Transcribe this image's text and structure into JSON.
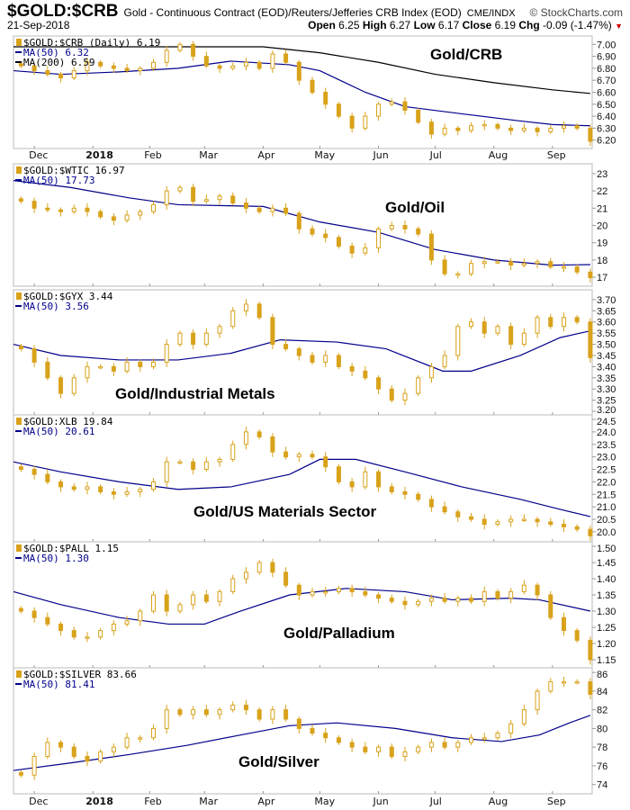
{
  "header": {
    "symbol": "$GOLD:$CRB",
    "description": "Gold - Continuous Contract (EOD)/Reuters/Jefferies CRB Index (EOD)",
    "exchange": "CME/INDX",
    "date": "21-Sep-2018",
    "brand": "© StockCharts.com",
    "open_label": "Open",
    "open": "6.25",
    "high_label": "High",
    "high": "6.27",
    "low_label": "Low",
    "low": "6.17",
    "close_label": "Close",
    "close": "6.19",
    "chg_label": "Chg",
    "chg": "-0.09 (-1.47%)",
    "chg_direction": "down"
  },
  "colors": {
    "candle": "#d9a21b",
    "ma50": "#00008b",
    "ma200": "#000000",
    "grid": "#bbbbbb"
  },
  "x_axis": {
    "labels": [
      "Dec",
      "2018",
      "Feb",
      "Mar",
      "Apr",
      "May",
      "Jun",
      "Jul",
      "Aug",
      "Sep"
    ],
    "label_dates": [
      "2017-12-01",
      "2018-01-01",
      "2018-01-31",
      "2018-03-01",
      "2018-04-01",
      "2018-05-01",
      "2018-06-01",
      "2018-07-01",
      "2018-08-01",
      "2018-09-01"
    ],
    "range": [
      "2017-11-20",
      "2018-09-22"
    ]
  },
  "chart_data": [
    {
      "type": "candlestick",
      "title": "Gold/CRB",
      "legend": [
        "$GOLD:$CRB (Daily) 6.19",
        "MA(50) 6.32",
        "MA(200) 6.59"
      ],
      "ylim": [
        6.13,
        7.07
      ],
      "yticks": [
        "7.00",
        "6.90",
        "6.80",
        "6.70",
        "6.60",
        "6.50",
        "6.40",
        "6.30",
        "6.20"
      ],
      "dates": [
        "2017-11-24",
        "2017-12-01",
        "2017-12-08",
        "2017-12-15",
        "2017-12-22",
        "2017-12-29",
        "2018-01-05",
        "2018-01-12",
        "2018-01-19",
        "2018-01-26",
        "2018-02-02",
        "2018-02-09",
        "2018-02-16",
        "2018-02-23",
        "2018-03-02",
        "2018-03-09",
        "2018-03-16",
        "2018-03-23",
        "2018-03-30",
        "2018-04-06",
        "2018-04-13",
        "2018-04-20",
        "2018-04-27",
        "2018-05-04",
        "2018-05-11",
        "2018-05-18",
        "2018-05-25",
        "2018-06-01",
        "2018-06-08",
        "2018-06-15",
        "2018-06-22",
        "2018-06-29",
        "2018-07-06",
        "2018-07-13",
        "2018-07-20",
        "2018-07-27",
        "2018-08-03",
        "2018-08-10",
        "2018-08-17",
        "2018-08-24",
        "2018-08-31",
        "2018-09-07",
        "2018-09-14",
        "2018-09-21"
      ],
      "close": [
        6.82,
        6.78,
        6.75,
        6.72,
        6.78,
        6.85,
        6.82,
        6.8,
        6.78,
        6.8,
        6.85,
        6.95,
        7.0,
        6.9,
        6.82,
        6.8,
        6.82,
        6.85,
        6.8,
        6.92,
        6.85,
        6.7,
        6.6,
        6.5,
        6.4,
        6.3,
        6.4,
        6.5,
        6.52,
        6.45,
        6.35,
        6.25,
        6.3,
        6.28,
        6.32,
        6.33,
        6.3,
        6.28,
        6.3,
        6.27,
        6.3,
        6.32,
        6.3,
        6.19
      ],
      "ma": [
        {
          "name": "MA(50)",
          "dates": [
            "2017-11-20",
            "2017-12-15",
            "2018-01-15",
            "2018-02-15",
            "2018-03-15",
            "2018-04-15",
            "2018-05-01",
            "2018-05-25",
            "2018-06-15",
            "2018-07-15",
            "2018-08-15",
            "2018-09-01",
            "2018-09-21"
          ],
          "values": [
            6.78,
            6.75,
            6.77,
            6.8,
            6.86,
            6.83,
            6.78,
            6.6,
            6.48,
            6.42,
            6.36,
            6.33,
            6.32
          ]
        },
        {
          "name": "MA(200)",
          "dates": [
            "2017-11-20",
            "2018-04-01",
            "2018-05-01",
            "2018-06-01",
            "2018-07-01",
            "2018-08-01",
            "2018-09-01",
            "2018-09-21"
          ],
          "values": [
            6.98,
            6.98,
            6.93,
            6.85,
            6.75,
            6.68,
            6.62,
            6.59
          ]
        }
      ]
    },
    {
      "type": "candlestick",
      "title": "Gold/Oil",
      "legend": [
        "$GOLD:$WTIC 16.97",
        "MA(50) 17.73"
      ],
      "ylim": [
        16.48,
        23.57
      ],
      "yticks": [
        "23",
        "22",
        "21",
        "20",
        "19",
        "18",
        "17"
      ],
      "close": [
        21.4,
        21.0,
        20.9,
        20.8,
        21.0,
        20.8,
        20.5,
        20.3,
        20.6,
        20.8,
        21.2,
        22.0,
        22.2,
        21.4,
        21.5,
        21.7,
        21.3,
        21.0,
        20.8,
        21.0,
        20.7,
        19.8,
        19.5,
        19.3,
        18.8,
        18.4,
        18.7,
        19.8,
        20.0,
        19.8,
        19.5,
        18.0,
        17.2,
        17.2,
        17.8,
        17.9,
        17.9,
        17.7,
        17.8,
        17.9,
        17.6,
        17.6,
        17.3,
        16.97
      ],
      "ma": [
        {
          "name": "MA(50)",
          "dates": [
            "2017-11-20",
            "2017-12-20",
            "2018-01-20",
            "2018-02-15",
            "2018-04-01",
            "2018-05-01",
            "2018-06-01",
            "2018-07-01",
            "2018-08-01",
            "2018-09-01",
            "2018-09-21"
          ],
          "values": [
            22.6,
            22.2,
            21.6,
            21.2,
            21.1,
            20.2,
            19.6,
            18.6,
            18.0,
            17.7,
            17.73
          ]
        }
      ]
    },
    {
      "type": "candlestick",
      "title": "Gold/Industrial Metals",
      "legend": [
        "$GOLD:$GYX 3.44",
        "MA(50) 3.56"
      ],
      "ylim": [
        3.184,
        3.744
      ],
      "yticks": [
        "3.70",
        "3.65",
        "3.60",
        "3.55",
        "3.50",
        "3.45",
        "3.40",
        "3.35",
        "3.30",
        "3.25",
        "3.20"
      ],
      "close": [
        3.48,
        3.42,
        3.35,
        3.28,
        3.35,
        3.4,
        3.4,
        3.38,
        3.42,
        3.4,
        3.42,
        3.5,
        3.55,
        3.5,
        3.55,
        3.58,
        3.65,
        3.68,
        3.62,
        3.5,
        3.48,
        3.45,
        3.42,
        3.45,
        3.4,
        3.38,
        3.35,
        3.3,
        3.25,
        3.28,
        3.35,
        3.4,
        3.45,
        3.58,
        3.6,
        3.55,
        3.58,
        3.5,
        3.55,
        3.62,
        3.58,
        3.62,
        3.6,
        3.44
      ],
      "ma": [
        {
          "name": "MA(50)",
          "dates": [
            "2017-11-20",
            "2017-12-15",
            "2018-01-15",
            "2018-02-15",
            "2018-03-15",
            "2018-04-10",
            "2018-05-10",
            "2018-06-05",
            "2018-07-05",
            "2018-07-20",
            "2018-08-15",
            "2018-09-05",
            "2018-09-21"
          ],
          "values": [
            3.5,
            3.45,
            3.43,
            3.43,
            3.46,
            3.52,
            3.51,
            3.48,
            3.38,
            3.38,
            3.45,
            3.53,
            3.56
          ]
        }
      ]
    },
    {
      "type": "candlestick",
      "title": "Gold/US Materials Sector",
      "legend": [
        "$GOLD:XLB 19.84",
        "MA(50) 20.61"
      ],
      "ylim": [
        19.6,
        24.68
      ],
      "yticks": [
        "24.5",
        "24.0",
        "23.5",
        "23.0",
        "22.5",
        "22.0",
        "21.5",
        "21.0",
        "20.5",
        "20.0"
      ],
      "close": [
        22.5,
        22.3,
        22.0,
        21.8,
        21.7,
        21.8,
        21.6,
        21.5,
        21.6,
        21.7,
        22.0,
        22.8,
        22.8,
        22.5,
        22.8,
        22.9,
        23.5,
        24.0,
        23.8,
        23.2,
        23.0,
        23.1,
        23.0,
        22.6,
        22.0,
        21.8,
        22.4,
        21.8,
        21.6,
        21.5,
        21.3,
        21.0,
        20.8,
        20.6,
        20.5,
        20.3,
        20.4,
        20.5,
        20.5,
        20.4,
        20.3,
        20.2,
        20.1,
        19.84
      ],
      "ma": [
        {
          "name": "MA(50)",
          "dates": [
            "2017-11-20",
            "2017-12-15",
            "2018-01-15",
            "2018-02-15",
            "2018-03-15",
            "2018-04-15",
            "2018-05-01",
            "2018-05-20",
            "2018-06-15",
            "2018-07-15",
            "2018-08-15",
            "2018-09-05",
            "2018-09-21"
          ],
          "values": [
            22.8,
            22.4,
            22.0,
            21.7,
            21.8,
            22.3,
            22.9,
            22.9,
            22.4,
            21.8,
            21.3,
            20.9,
            20.61
          ]
        }
      ]
    },
    {
      "type": "candlestick",
      "title": "Gold/Palladium",
      "legend": [
        "$GOLD:$PALL 1.15",
        "MA(50) 1.30"
      ],
      "ylim": [
        1.125,
        1.514
      ],
      "yticks": [
        "1.50",
        "1.45",
        "1.40",
        "1.35",
        "1.30",
        "1.25",
        "1.20",
        "1.15"
      ],
      "close": [
        1.3,
        1.28,
        1.26,
        1.24,
        1.22,
        1.22,
        1.24,
        1.26,
        1.27,
        1.3,
        1.35,
        1.3,
        1.32,
        1.35,
        1.33,
        1.36,
        1.4,
        1.42,
        1.45,
        1.42,
        1.38,
        1.35,
        1.36,
        1.36,
        1.37,
        1.36,
        1.35,
        1.34,
        1.33,
        1.32,
        1.33,
        1.34,
        1.33,
        1.34,
        1.33,
        1.36,
        1.34,
        1.36,
        1.38,
        1.35,
        1.28,
        1.24,
        1.21,
        1.15
      ],
      "ma": [
        {
          "name": "MA(50)",
          "dates": [
            "2017-11-20",
            "2017-12-15",
            "2018-01-15",
            "2018-02-10",
            "2018-03-01",
            "2018-03-20",
            "2018-04-15",
            "2018-05-15",
            "2018-06-15",
            "2018-07-10",
            "2018-08-10",
            "2018-08-25",
            "2018-09-21"
          ],
          "values": [
            1.36,
            1.32,
            1.28,
            1.26,
            1.26,
            1.3,
            1.35,
            1.37,
            1.36,
            1.335,
            1.34,
            1.335,
            1.3
          ]
        }
      ]
    },
    {
      "type": "candlestick",
      "title": "Gold/Silver",
      "legend": [
        "$GOLD:$SILVER 83.66",
        "MA(50) 81.41"
      ],
      "ylim": [
        73.0,
        86.5
      ],
      "yticks": [
        "86",
        "84",
        "82",
        "80",
        "78",
        "76",
        "74"
      ],
      "close": [
        75.0,
        77.0,
        78.5,
        78.0,
        77.0,
        76.5,
        77.5,
        78.0,
        79.0,
        79.0,
        80.0,
        82.0,
        81.5,
        82.0,
        81.5,
        82.0,
        82.5,
        82.0,
        81.0,
        82.0,
        81.0,
        80.0,
        79.5,
        79.0,
        78.5,
        78.0,
        77.5,
        78.0,
        77.0,
        77.5,
        78.0,
        78.5,
        78.0,
        78.5,
        79.0,
        79.0,
        79.5,
        80.5,
        82.0,
        84.0,
        85.0,
        85.0,
        85.0,
        83.66
      ],
      "ma": [
        {
          "name": "MA(50)",
          "dates": [
            "2017-11-20",
            "2017-12-20",
            "2018-01-20",
            "2018-02-20",
            "2018-03-20",
            "2018-04-15",
            "2018-05-10",
            "2018-06-10",
            "2018-07-10",
            "2018-08-05",
            "2018-08-25",
            "2018-09-10",
            "2018-09-21"
          ],
          "values": [
            75.5,
            76.3,
            77.2,
            78.2,
            79.3,
            80.3,
            80.6,
            80.0,
            79.0,
            78.6,
            79.3,
            80.6,
            81.41
          ]
        }
      ]
    }
  ]
}
